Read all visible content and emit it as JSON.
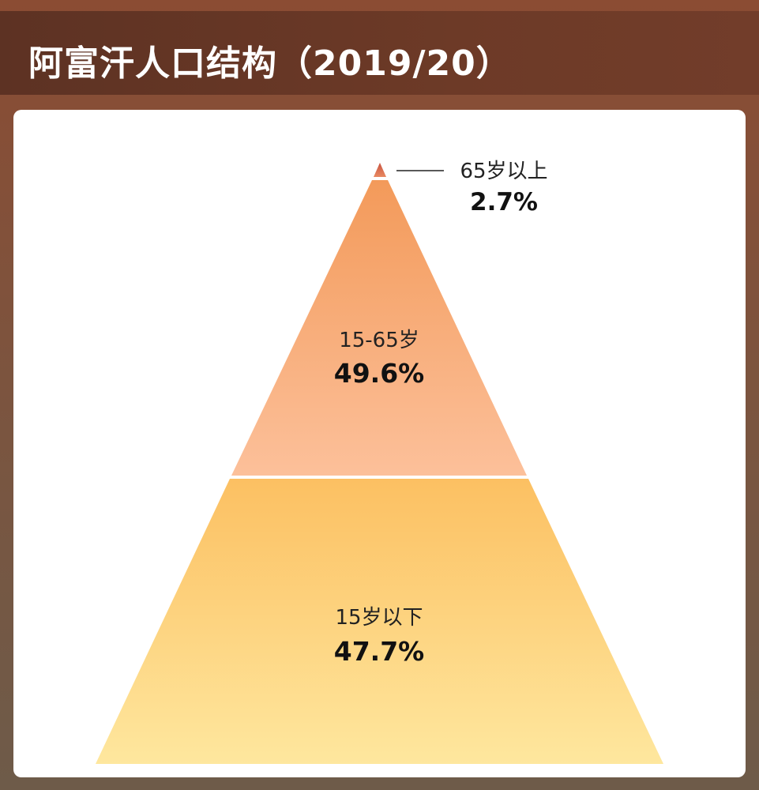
{
  "title": "阿富汗人口结构（2019/20）",
  "chart_data": {
    "type": "pyramid",
    "unit": "%",
    "segments": [
      {
        "label": "65岁以上",
        "value": 2.7,
        "value_text": "2.7%",
        "color_top": "#c8543f",
        "color_bottom": "#e98a62"
      },
      {
        "label": "15-65岁",
        "value": 49.6,
        "value_text": "49.6%",
        "color_top": "#f39a5a",
        "color_bottom": "#fcc09a"
      },
      {
        "label": "15岁以下",
        "value": 47.7,
        "value_text": "47.7%",
        "color_top": "#fcc062",
        "color_bottom": "#fee79e"
      }
    ]
  }
}
